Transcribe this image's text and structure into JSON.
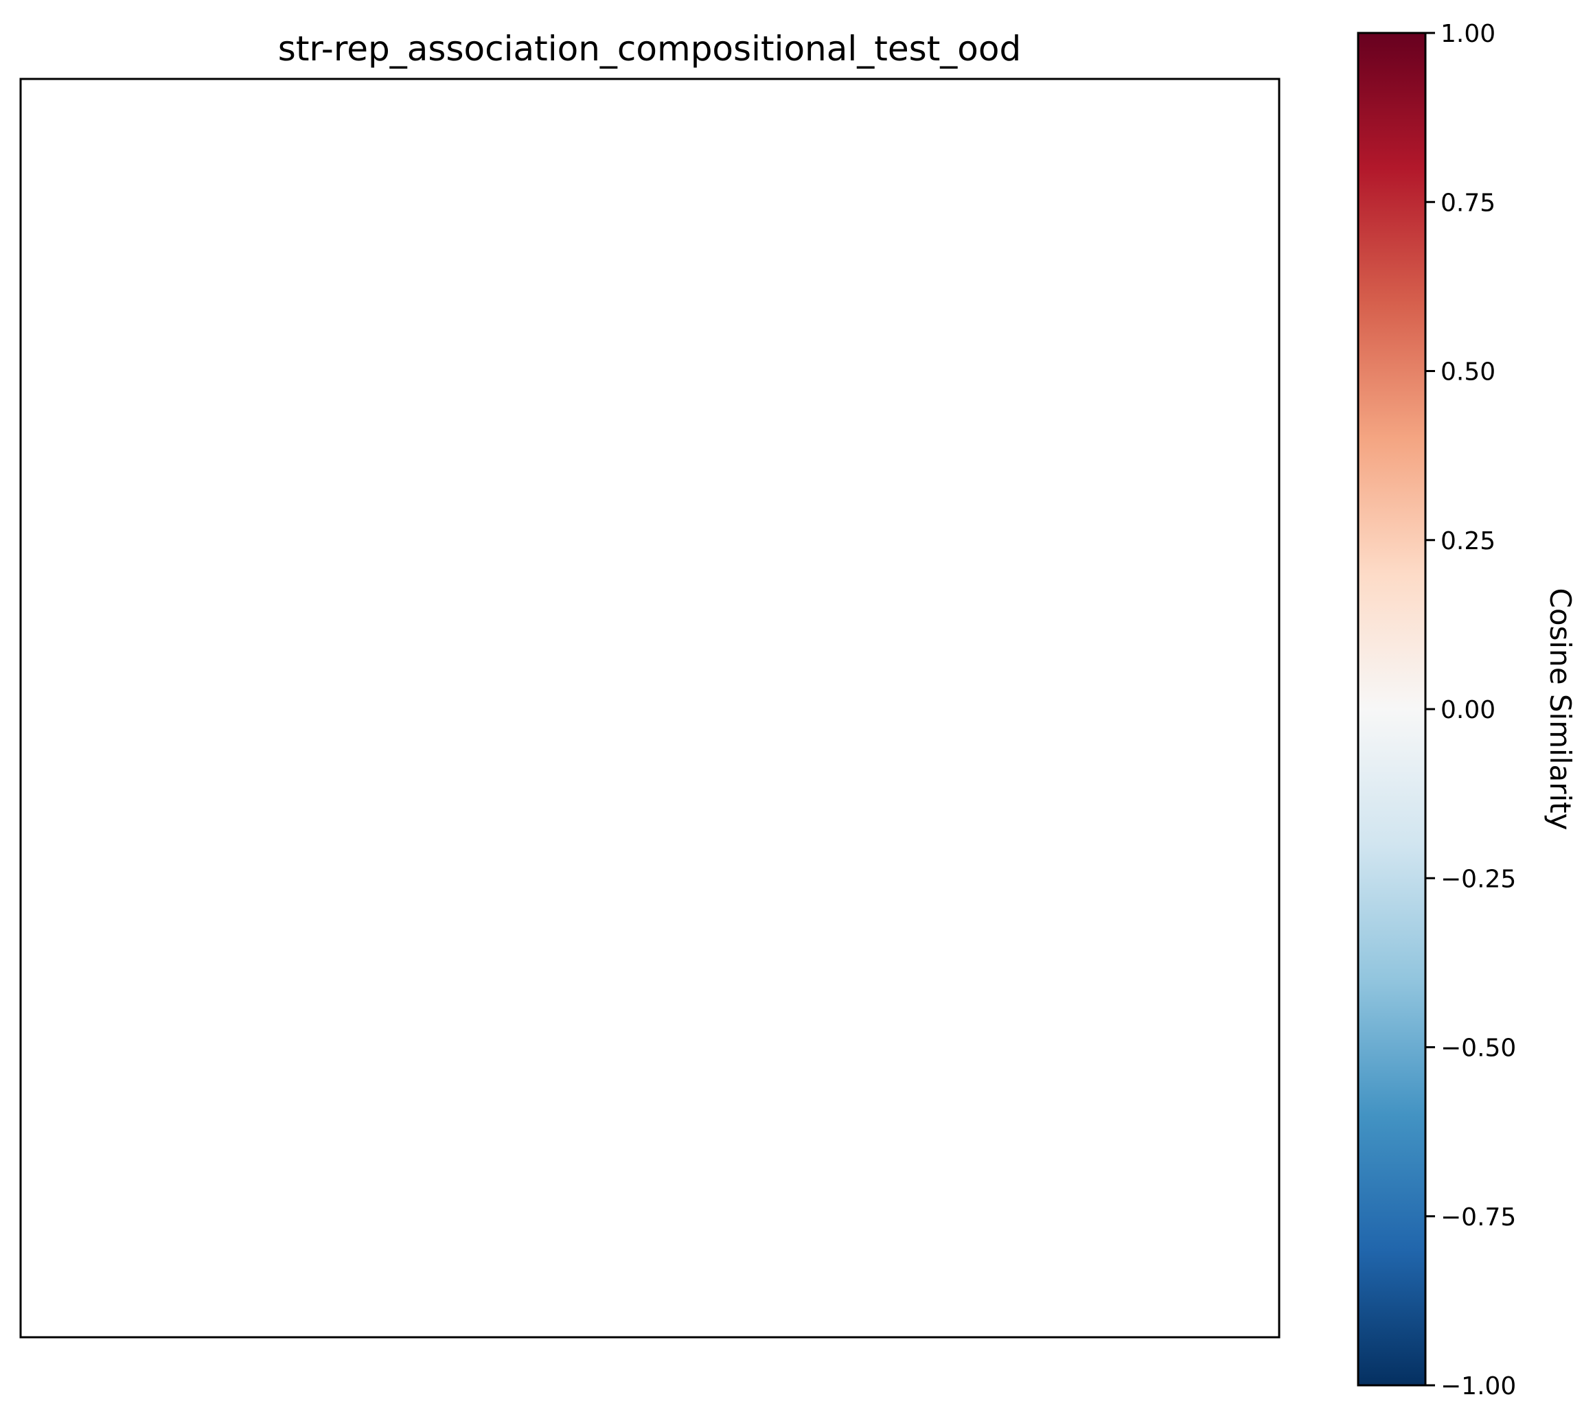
{
  "chart_data": {
    "type": "heatmap",
    "title": "str-rep_association_compositional_test_ood",
    "values": [],
    "grid": false,
    "colorbar": {
      "label": "Cosine Similarity",
      "range": [
        -1.0,
        1.0
      ],
      "ticks": [
        1.0,
        0.75,
        0.5,
        0.25,
        0.0,
        -0.25,
        -0.5,
        -0.75,
        -1.0
      ],
      "tick_labels": [
        "1.00",
        "0.75",
        "0.50",
        "0.25",
        "0.00",
        "−0.25",
        "−0.50",
        "−0.75",
        "−1.00"
      ],
      "colormap": "RdBu_r",
      "colormap_stops": [
        "#053061",
        "#2166ac",
        "#4393c3",
        "#92c5de",
        "#d1e5f0",
        "#f7f7f7",
        "#fddbc7",
        "#f4a582",
        "#d6604d",
        "#b2182b",
        "#67001f"
      ]
    }
  }
}
